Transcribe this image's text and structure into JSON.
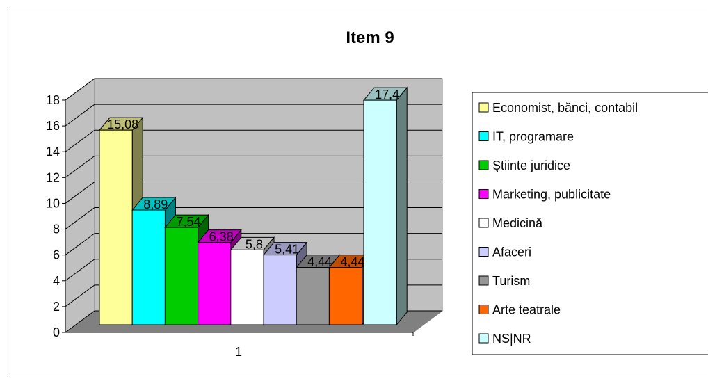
{
  "chart_data": {
    "type": "bar",
    "title": "Item 9",
    "categories": [
      "1"
    ],
    "ylim": [
      0,
      18
    ],
    "yticks": [
      0,
      2,
      4,
      6,
      8,
      10,
      12,
      14,
      16,
      18
    ],
    "grid": true,
    "legend_position": "right",
    "series": [
      {
        "name": "Economist, bănci, contabil",
        "value": 15.08,
        "label": "15,08",
        "color": "#ffff99"
      },
      {
        "name": "IT, programare",
        "value": 8.89,
        "label": "8,89",
        "color": "#00ffff"
      },
      {
        "name": "Ştiinte juridice",
        "value": 7.54,
        "label": "7,54",
        "color": "#00cc00"
      },
      {
        "name": "Marketing, publicitate",
        "value": 6.38,
        "label": "6,38",
        "color": "#ff00ff"
      },
      {
        "name": "Medicină",
        "value": 5.8,
        "label": "5,8",
        "color": "#ffffff"
      },
      {
        "name": "Afaceri",
        "value": 5.41,
        "label": "5,41",
        "color": "#ccccff"
      },
      {
        "name": "Turism",
        "value": 4.44,
        "label": "4,44",
        "color": "#969696"
      },
      {
        "name": "Arte teatrale",
        "value": 4.44,
        "label": "4,44",
        "color": "#ff6600"
      },
      {
        "name": "NS|NR",
        "value": 17.4,
        "label": "17,4",
        "color": "#ccffff"
      }
    ]
  }
}
